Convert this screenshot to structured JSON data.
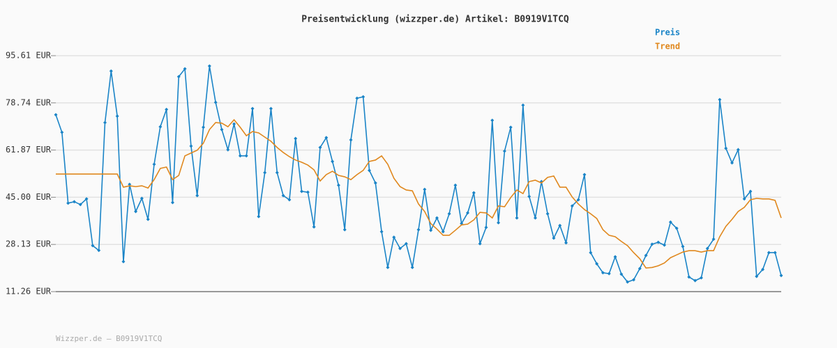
{
  "chart_data": {
    "type": "line",
    "title": "Preisentwicklung (wizzper.de) Artikel: B0919V1TCQ",
    "footer": "Wizzper.de – B0919V1TCQ",
    "ylim": [
      11.26,
      95.61
    ],
    "yticks": [
      {
        "value": 11.26,
        "label": "11.26 EUR"
      },
      {
        "value": 28.13,
        "label": "28.13 EUR"
      },
      {
        "value": 45.0,
        "label": "45.00 EUR"
      },
      {
        "value": 61.87,
        "label": "61.87 EUR"
      },
      {
        "value": 78.74,
        "label": "78.74 EUR"
      },
      {
        "value": 95.61,
        "label": "95.61 EUR"
      }
    ],
    "grid": true,
    "series": [
      {
        "name": "Preis",
        "color": "#1a84c7",
        "markers": true,
        "values": [
          74.5,
          68.2,
          42.9,
          43.4,
          42.4,
          44.4,
          27.7,
          26.0,
          71.7,
          90.1,
          74.0,
          22.0,
          49.6,
          39.9,
          44.6,
          37.1,
          56.8,
          70.2,
          76.4,
          43.1,
          88.1,
          90.9,
          63.3,
          45.6,
          70.0,
          91.9,
          78.9,
          69.2,
          62.0,
          71.2,
          59.8,
          59.8,
          76.7,
          38.1,
          53.8,
          76.7,
          53.8,
          45.6,
          44.1,
          66.0,
          47.1,
          46.8,
          34.4,
          62.8,
          66.3,
          57.8,
          49.3,
          33.4,
          65.5,
          80.4,
          80.9,
          54.6,
          50.1,
          32.7,
          19.9,
          30.7,
          26.7,
          28.4,
          19.9,
          33.4,
          47.8,
          33.2,
          37.6,
          32.7,
          39.1,
          49.3,
          35.6,
          39.4,
          46.6,
          28.4,
          34.2,
          72.5,
          35.9,
          61.5,
          70.0,
          37.6,
          77.9,
          45.3,
          37.6,
          50.6,
          39.1,
          30.4,
          34.9,
          28.7,
          41.9,
          44.1,
          53.1,
          25.2,
          21.2,
          18.0,
          17.7,
          23.7,
          17.5,
          14.7,
          15.5,
          19.5,
          24.2,
          28.2,
          28.9,
          27.9,
          36.1,
          33.9,
          27.4,
          16.5,
          15.2,
          16.2,
          26.7,
          30.0,
          79.9,
          62.5,
          57.3,
          62.0,
          44.4,
          47.1,
          16.7,
          19.2,
          25.2,
          25.2,
          17.0
        ]
      },
      {
        "name": "Trend",
        "color": "#e0881e",
        "markers": false,
        "values": [
          53.3,
          53.3,
          53.3,
          53.3,
          53.3,
          53.3,
          53.3,
          53.3,
          53.3,
          53.3,
          53.3,
          48.6,
          49.1,
          48.8,
          49.1,
          48.3,
          51.3,
          55.3,
          55.8,
          51.3,
          52.8,
          59.8,
          60.8,
          61.8,
          64.3,
          69.2,
          71.7,
          71.5,
          70.2,
          72.7,
          70.0,
          67.0,
          68.5,
          68.0,
          66.5,
          65.0,
          62.8,
          61.0,
          59.5,
          58.3,
          57.5,
          56.5,
          54.8,
          50.8,
          53.1,
          54.3,
          52.8,
          52.3,
          51.3,
          53.1,
          54.6,
          57.8,
          58.3,
          59.8,
          56.8,
          51.8,
          48.8,
          47.6,
          47.3,
          42.6,
          39.9,
          35.6,
          33.6,
          31.4,
          31.4,
          33.2,
          35.1,
          35.4,
          36.9,
          39.6,
          39.4,
          37.6,
          41.9,
          41.6,
          44.9,
          47.6,
          46.3,
          50.6,
          51.1,
          50.1,
          52.1,
          52.6,
          48.6,
          48.6,
          45.1,
          42.6,
          40.6,
          39.1,
          37.4,
          33.4,
          31.4,
          30.9,
          29.2,
          27.7,
          25.2,
          23.0,
          19.7,
          19.9,
          20.5,
          21.5,
          23.4,
          24.4,
          25.4,
          25.9,
          25.9,
          25.4,
          25.9,
          25.9,
          30.9,
          34.6,
          37.1,
          39.9,
          41.4,
          44.1,
          44.6,
          44.4,
          44.4,
          43.9,
          37.6
        ]
      }
    ]
  }
}
